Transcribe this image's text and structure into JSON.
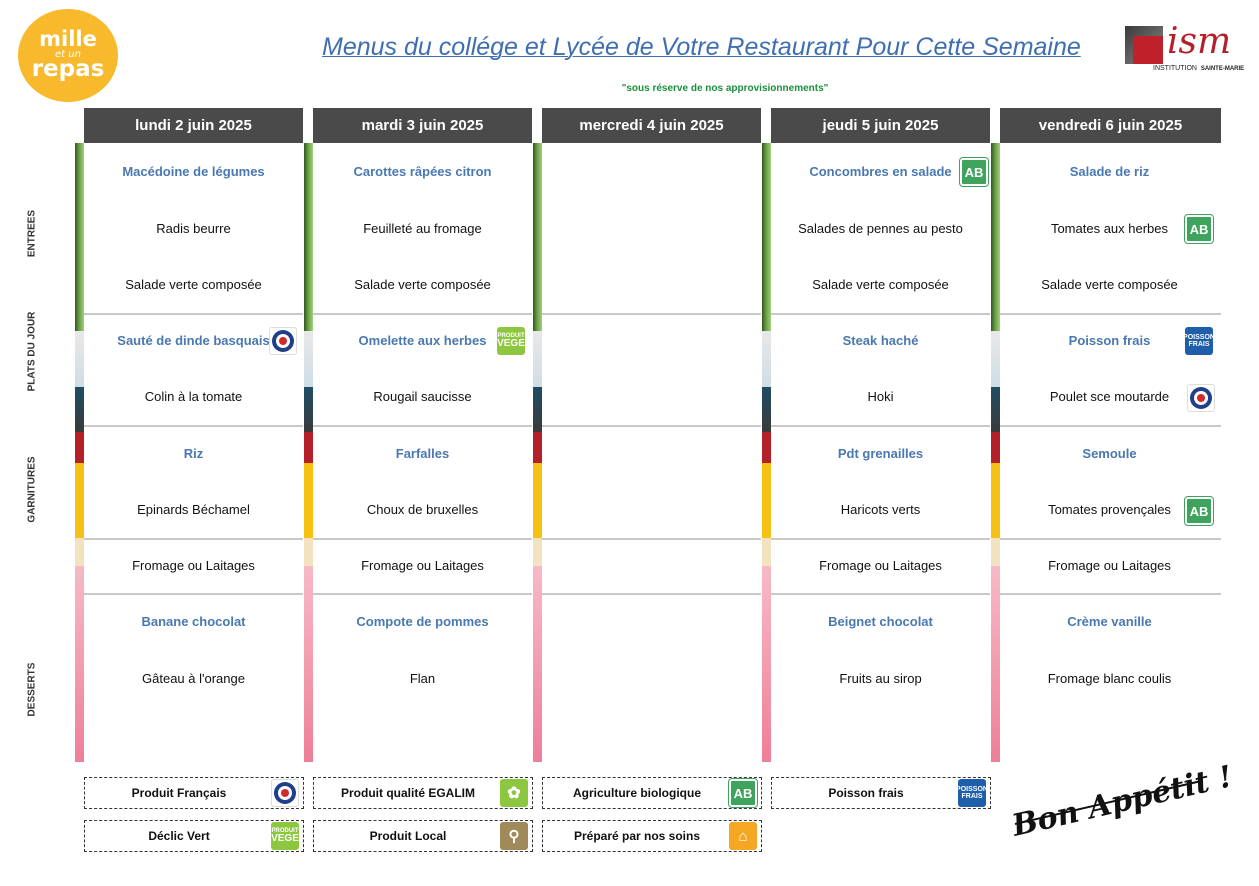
{
  "logo": {
    "line1": "mille",
    "line2": "et un",
    "line3": "repas"
  },
  "title": "Menus du collége et Lycée de Votre Restaurant Pour Cette Semaine",
  "subtitle": "\"sous réserve de nos approvisionnements\"",
  "ism_logo": {
    "text": "ism",
    "caption_left": "INSTITUTION",
    "caption_right": "SAINTE-MARIE"
  },
  "sections": {
    "entrees": "ENTREES",
    "plats": "PLATS DU JOUR",
    "garnitures": "GARNITURES",
    "desserts": "DESSERTS"
  },
  "days": [
    {
      "header": "lundi 2 juin 2025",
      "entree_hl": "Macédoine de légumes",
      "entree_2": "Radis beurre",
      "entree_3": "Salade verte composée",
      "plat_hl": "Sauté de dinde basquais",
      "plat_2": "Colin à la tomate",
      "garn_hl": "Riz",
      "garn_2": "Epinards Béchamel",
      "fromage": "Fromage ou Laitages",
      "dessert_hl": "Banane chocolat",
      "dessert_2": "Gâteau à l'orange"
    },
    {
      "header": "mardi 3 juin 2025",
      "entree_hl": "Carottes râpées citron",
      "entree_2": "Feuilleté au fromage",
      "entree_3": "Salade verte composée",
      "plat_hl": "Omelette aux herbes",
      "plat_2": "Rougail saucisse",
      "garn_hl": "Farfalles",
      "garn_2": "Choux de bruxelles",
      "fromage": "Fromage ou Laitages",
      "dessert_hl": "Compote de pommes",
      "dessert_2": "Flan"
    },
    {
      "header": "mercredi 4 juin 2025"
    },
    {
      "header": "jeudi 5 juin 2025",
      "entree_hl": "Concombres en salade",
      "entree_2": "Salades de pennes au pesto",
      "entree_3": "Salade verte composée",
      "plat_hl": "Steak haché",
      "plat_2": "Hoki",
      "garn_hl": "Pdt grenailles",
      "garn_2": "Haricots verts",
      "fromage": "Fromage ou Laitages",
      "dessert_hl": "Beignet chocolat",
      "dessert_2": "Fruits au sirop"
    },
    {
      "header": "vendredi 6 juin 2025",
      "entree_hl": "Salade de riz",
      "entree_2": "Tomates aux herbes",
      "entree_3": "Salade verte composée",
      "plat_hl": "Poisson frais",
      "plat_2": "Poulet sce moutarde",
      "garn_hl": "Semoule",
      "garn_2": "Tomates provençales",
      "fromage": "Fromage ou Laitages",
      "dessert_hl": "Crème vanille",
      "dessert_2": "Fromage blanc coulis"
    }
  ],
  "badges": {
    "ab": "AB",
    "vege_top": "PRODUIT",
    "vege_main": "VEGE",
    "frais_top": "POISSON",
    "frais_main": "FRAIS"
  },
  "legend": [
    {
      "label": "Produit Français",
      "icon": "french-product-icon"
    },
    {
      "label": "Produit qualité EGALIM",
      "icon": "egalim-icon"
    },
    {
      "label": "Agriculture biologique",
      "icon": "organic-ab-icon"
    },
    {
      "label": "Poisson frais",
      "icon": "fresh-fish-icon"
    },
    {
      "label": "Déclic Vert",
      "icon": "vege-icon"
    },
    {
      "label": "Produit Local",
      "icon": "local-pin-icon"
    },
    {
      "label": "Préparé par nos soins",
      "icon": "homemade-icon"
    }
  ],
  "signature": "Bon Appétit !",
  "colors": {
    "header_bg": "#4a4a4a",
    "highlight_text": "#4a78b0",
    "title": "#3f6fb0",
    "subtitle": "#1a8f3c",
    "logo": "#f8b92c"
  }
}
